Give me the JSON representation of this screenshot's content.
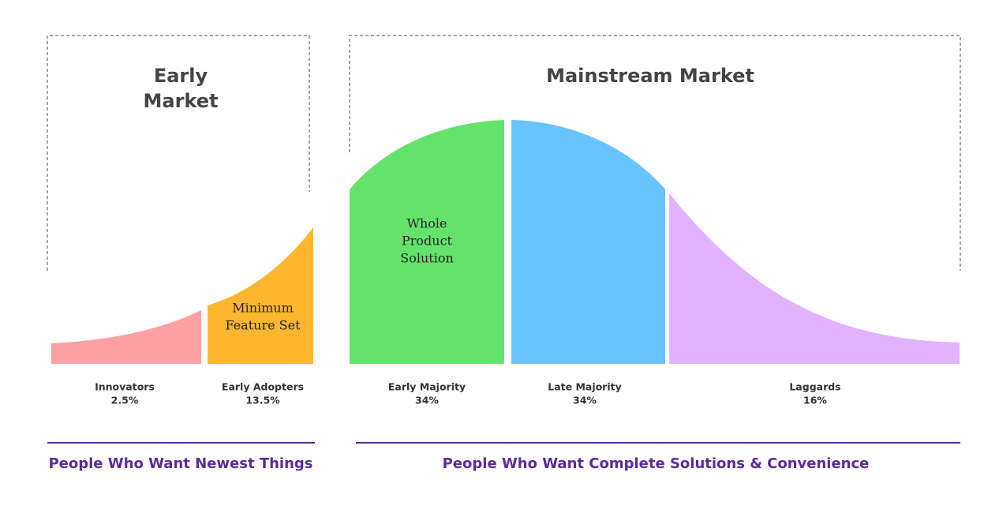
{
  "groups": [
    {
      "title": [
        "Early",
        "Market"
      ],
      "footer": "People Who Want Newest Things"
    },
    {
      "title": [
        "Mainstream Market"
      ],
      "footer": "People Who Want Complete Solutions & Convenience"
    }
  ],
  "segments": [
    {
      "label": "Innovators",
      "share": "2.5%"
    },
    {
      "label": "Early Adopters",
      "share": "13.5%"
    },
    {
      "label": "Early Majority",
      "share": "34%"
    },
    {
      "label": "Late Majority",
      "share": "34%"
    },
    {
      "label": "Laggards",
      "share": "16%"
    }
  ],
  "callouts": [
    {
      "lines": [
        "Minimum",
        "Feature Set"
      ]
    },
    {
      "lines": [
        "Whole",
        "Product",
        "Solution"
      ]
    }
  ]
}
